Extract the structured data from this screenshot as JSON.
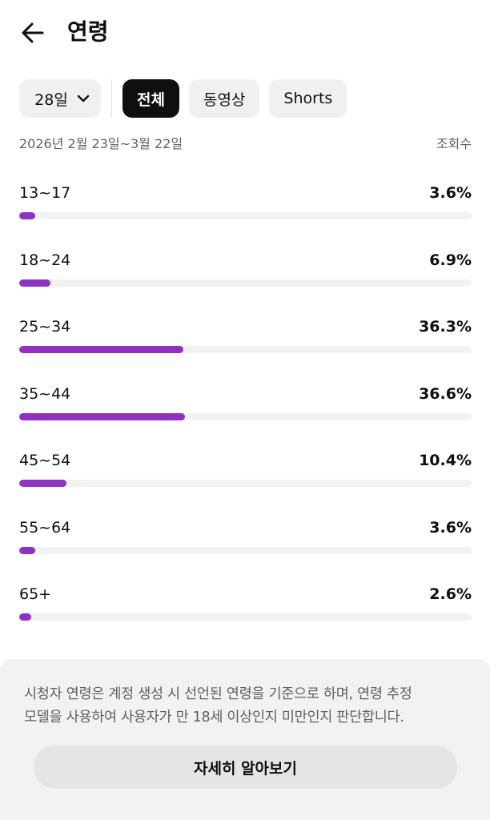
{
  "header": {
    "back_icon": "arrow-left-icon",
    "title": "연령"
  },
  "filters": {
    "period": {
      "label": "28일",
      "icon": "chevron-down-icon"
    },
    "content_types": [
      {
        "label": "전체",
        "selected": true
      },
      {
        "label": "동영상",
        "selected": false
      },
      {
        "label": "Shorts",
        "selected": false
      }
    ]
  },
  "summary": {
    "date_range": "2026년 2월 23일~3월 22일",
    "metric": "조회수"
  },
  "age_groups": [
    {
      "label": "13~17",
      "percent": "3.6%",
      "value": 3.6
    },
    {
      "label": "18~24",
      "percent": "6.9%",
      "value": 6.9
    },
    {
      "label": "25~34",
      "percent": "36.3%",
      "value": 36.3
    },
    {
      "label": "35~44",
      "percent": "36.6%",
      "value": 36.6
    },
    {
      "label": "45~54",
      "percent": "10.4%",
      "value": 10.4
    },
    {
      "label": "55~64",
      "percent": "3.6%",
      "value": 3.6
    },
    {
      "label": "65+",
      "percent": "2.6%",
      "value": 2.6
    }
  ],
  "bar_max_value": 100,
  "info": {
    "line1": "시청자 연령은 계정 생성 시 선언된 연령을 기준으로 하며, 연령 추정",
    "line2": "모델을 사용하여 사용자가 만 18세 이상인지 미만인지 판단합니다.",
    "button_label": "자세히 알아보기"
  },
  "colors": {
    "bar_fill": "#9130c6",
    "bar_track": "#f2f2f2",
    "chip_selected": "#0f0f0f",
    "chip": "#f0f0f0"
  }
}
